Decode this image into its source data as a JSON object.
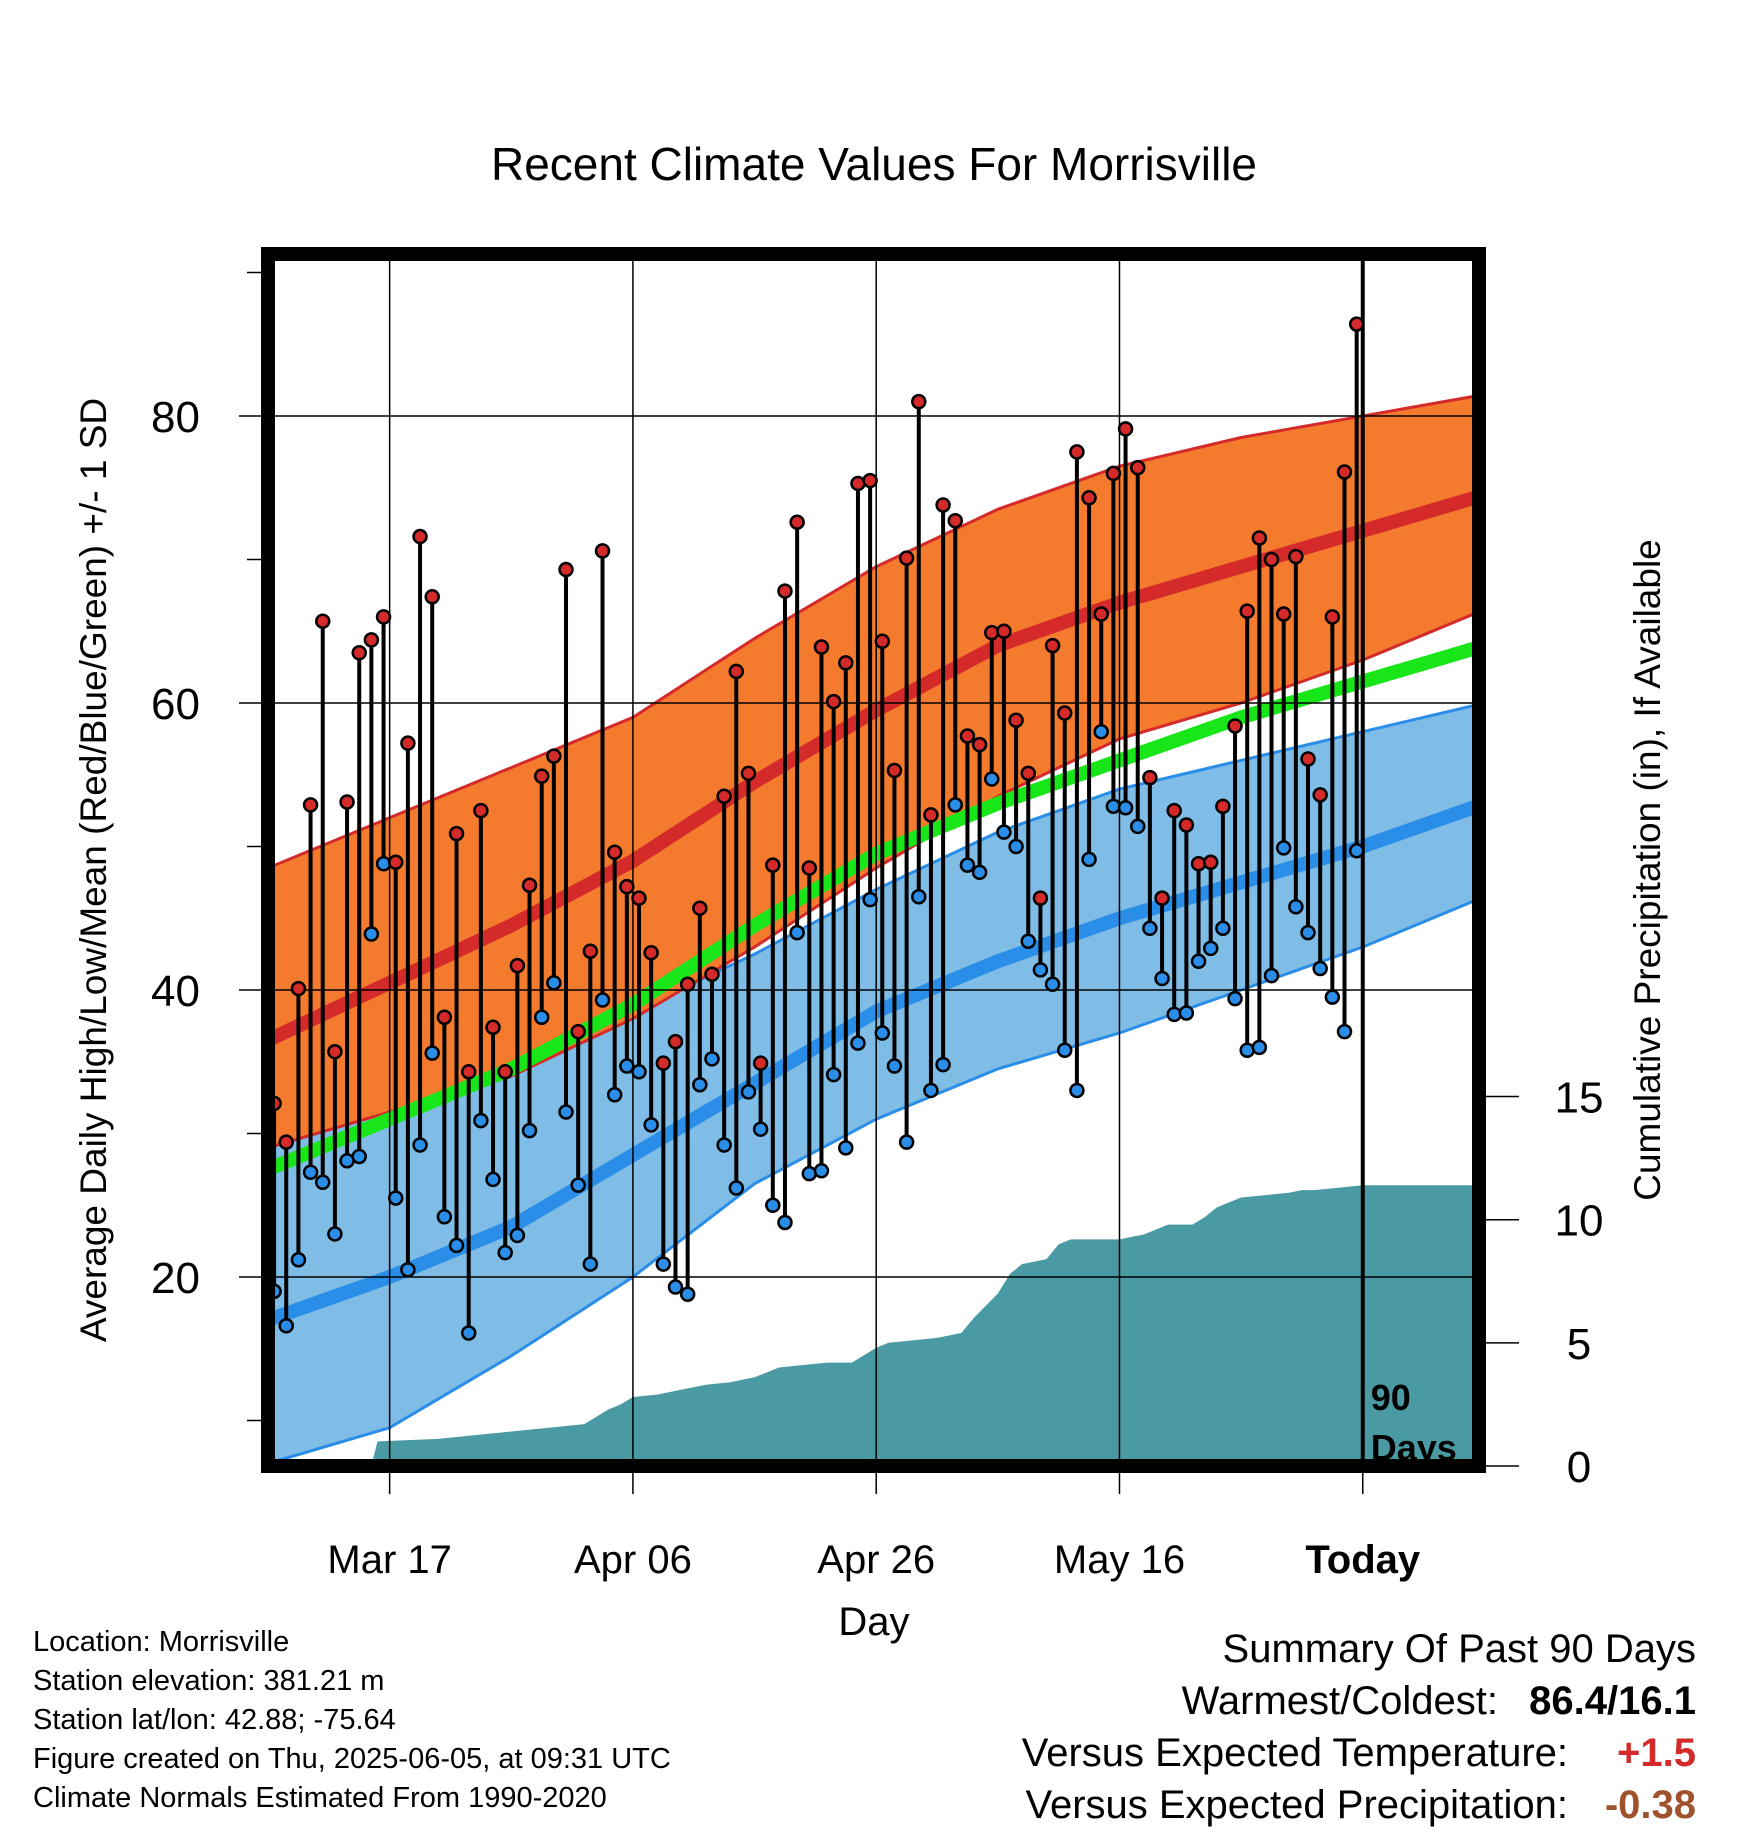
{
  "chart_data": {
    "type": "line",
    "title": "Recent Climate Values For Morrisville",
    "xlabel": "Day",
    "ylabel": "Average Daily High/Low/Mean (Red/Blue/Green) +/- 1 SD",
    "y2label": "Cumulative Precipitation (in), If Available",
    "ylim": [
      7,
      92
    ],
    "y_ticks": [
      "20",
      "40",
      "60",
      "80"
    ],
    "y2lim": [
      0,
      30
    ],
    "y2_ticks": [
      "0",
      "5",
      "10",
      "15"
    ],
    "x_range_days": [
      0,
      101
    ],
    "x_ticks": [
      {
        "day": 10,
        "label": "Mar 17"
      },
      {
        "day": 30,
        "label": "Apr 06"
      },
      {
        "day": 50,
        "label": "Apr 26"
      },
      {
        "day": 70,
        "label": "May 16"
      },
      {
        "day": 90,
        "label": "Today"
      }
    ],
    "today_marker": {
      "day": 90,
      "label": [
        "90",
        "Days"
      ]
    },
    "grid": true,
    "colors": {
      "high_band": "#f47b2e",
      "high_edge": "#d42a2a",
      "high_mean": "#d42a2a",
      "low_band": "#7fbde6",
      "low_edge": "#2a8ee8",
      "low_mean": "#2a8ee8",
      "mean": "#19e619",
      "precip": "#4a9aa4",
      "high_point": "#d42a2a",
      "low_point": "#2a8ee8"
    },
    "normals": {
      "x": [
        0,
        10,
        20,
        30,
        40,
        50,
        60,
        70,
        80,
        90,
        100
      ],
      "high_mean": [
        36.5,
        40.5,
        44.5,
        49.0,
        54.5,
        59.5,
        64.0,
        67.0,
        69.5,
        72.0,
        74.5
      ],
      "high_upper": [
        48.5,
        52.0,
        55.5,
        59.0,
        64.5,
        69.5,
        73.5,
        76.5,
        78.5,
        80.0,
        81.5
      ],
      "high_lower": [
        29.0,
        31.5,
        34.0,
        38.0,
        43.0,
        48.5,
        53.5,
        57.5,
        60.0,
        63.0,
        66.5
      ],
      "mean": [
        27.5,
        31.0,
        34.5,
        39.0,
        44.5,
        49.5,
        53.0,
        56.0,
        59.0,
        61.5,
        64.0
      ],
      "low_mean": [
        17.0,
        20.0,
        23.5,
        28.5,
        33.5,
        38.5,
        42.0,
        45.0,
        47.5,
        50.0,
        53.0
      ],
      "low_upper": [
        29.0,
        32.5,
        35.5,
        38.5,
        42.5,
        47.0,
        51.0,
        54.0,
        56.0,
        58.0,
        60.0
      ],
      "low_lower": [
        7.0,
        9.5,
        14.5,
        20.0,
        26.5,
        31.0,
        34.5,
        37.0,
        40.0,
        43.0,
        46.5
      ]
    },
    "series": [
      {
        "name": "High",
        "values": [
          32.1,
          29.4,
          40.1,
          52.9,
          65.7,
          35.7,
          53.1,
          63.5,
          64.4,
          66.0,
          48.9,
          57.2,
          71.6,
          67.4,
          38.1,
          50.9,
          34.3,
          52.5,
          37.4,
          34.3,
          41.7,
          47.3,
          54.9,
          56.3,
          69.3,
          37.1,
          42.7,
          70.6,
          49.6,
          47.2,
          46.4,
          42.6,
          34.9,
          36.4,
          40.4,
          45.7,
          41.1,
          53.5,
          62.2,
          55.1,
          34.9,
          48.7,
          67.8,
          72.6,
          48.5,
          63.9,
          60.1,
          62.8,
          75.3,
          75.5,
          64.3,
          55.3,
          70.1,
          81.0,
          52.2,
          73.8,
          72.7,
          57.7,
          57.1,
          64.9,
          65.0,
          58.8,
          55.1,
          46.4,
          64.0,
          59.3,
          77.5,
          74.3,
          66.2,
          76.0,
          79.1,
          76.4,
          54.8,
          46.4,
          52.5,
          51.5,
          48.8,
          48.9,
          52.8,
          58.4,
          66.4,
          71.5,
          70.0,
          66.2,
          70.2,
          56.1,
          53.6,
          66.0,
          76.1,
          86.4
        ]
      },
      {
        "name": "Low",
        "values": [
          19.0,
          16.6,
          21.2,
          27.3,
          26.6,
          23.0,
          28.1,
          28.4,
          43.9,
          48.8,
          25.5,
          20.5,
          29.2,
          35.6,
          24.2,
          22.2,
          16.1,
          30.9,
          26.8,
          21.7,
          22.9,
          30.2,
          38.1,
          40.5,
          31.5,
          26.4,
          20.9,
          39.3,
          32.7,
          34.7,
          34.3,
          30.6,
          20.9,
          19.3,
          18.8,
          33.4,
          35.2,
          29.2,
          26.2,
          32.9,
          30.3,
          25.0,
          23.8,
          44.0,
          27.2,
          27.4,
          34.1,
          29.0,
          36.3,
          46.3,
          37.0,
          34.7,
          29.4,
          46.5,
          33.0,
          34.8,
          52.9,
          48.7,
          48.2,
          54.7,
          51.0,
          50.0,
          43.4,
          41.4,
          40.4,
          35.8,
          33.0,
          49.1,
          58.0,
          52.8,
          52.7,
          51.4,
          44.3,
          40.8,
          38.3,
          38.4,
          42.0,
          42.9,
          44.3,
          39.4,
          35.8,
          36.0,
          41.0,
          49.9,
          45.8,
          44.0,
          41.5,
          39.5,
          37.1,
          49.7
        ]
      }
    ],
    "precip": {
      "x": [
        0,
        8.5,
        9,
        14,
        16,
        20,
        24,
        26,
        27,
        28,
        29,
        30,
        32,
        34,
        36,
        38,
        40,
        42,
        44,
        46,
        48,
        50,
        51,
        53,
        55,
        57,
        58,
        59,
        60,
        61,
        62,
        63,
        64,
        65,
        66,
        68,
        70,
        71,
        72,
        74,
        76,
        77,
        78,
        80,
        82,
        84,
        85,
        86,
        88,
        90,
        101
      ],
      "y": [
        0,
        0,
        1.0,
        1.1,
        1.2,
        1.4,
        1.6,
        1.7,
        2.0,
        2.3,
        2.5,
        2.8,
        2.9,
        3.1,
        3.3,
        3.4,
        3.6,
        4.0,
        4.1,
        4.2,
        4.2,
        4.8,
        5.0,
        5.1,
        5.2,
        5.4,
        6.0,
        6.5,
        7.0,
        7.8,
        8.2,
        8.3,
        8.4,
        9.0,
        9.2,
        9.2,
        9.2,
        9.3,
        9.4,
        9.8,
        9.8,
        10.1,
        10.5,
        10.9,
        11.0,
        11.1,
        11.2,
        11.2,
        11.3,
        11.4,
        11.4
      ]
    }
  },
  "info": {
    "location": "Location: Morrisville",
    "elevation": "Station elevation: 381.21 m",
    "latlon": "Station lat/lon: 42.88; -75.64",
    "created": "Figure created on Thu, 2025-06-05, at 09:31 UTC",
    "normals": "Climate Normals Estimated From 1990-2020"
  },
  "summary": {
    "title": "Summary Of Past 90 Days",
    "warmest_label": "Warmest/Coldest:",
    "warmest_value": "86.4/16.1",
    "temp_label": "Versus Expected Temperature:",
    "temp_value": "+1.5",
    "precip_label": "Versus Expected Precipitation:",
    "precip_value": "-0.38"
  }
}
